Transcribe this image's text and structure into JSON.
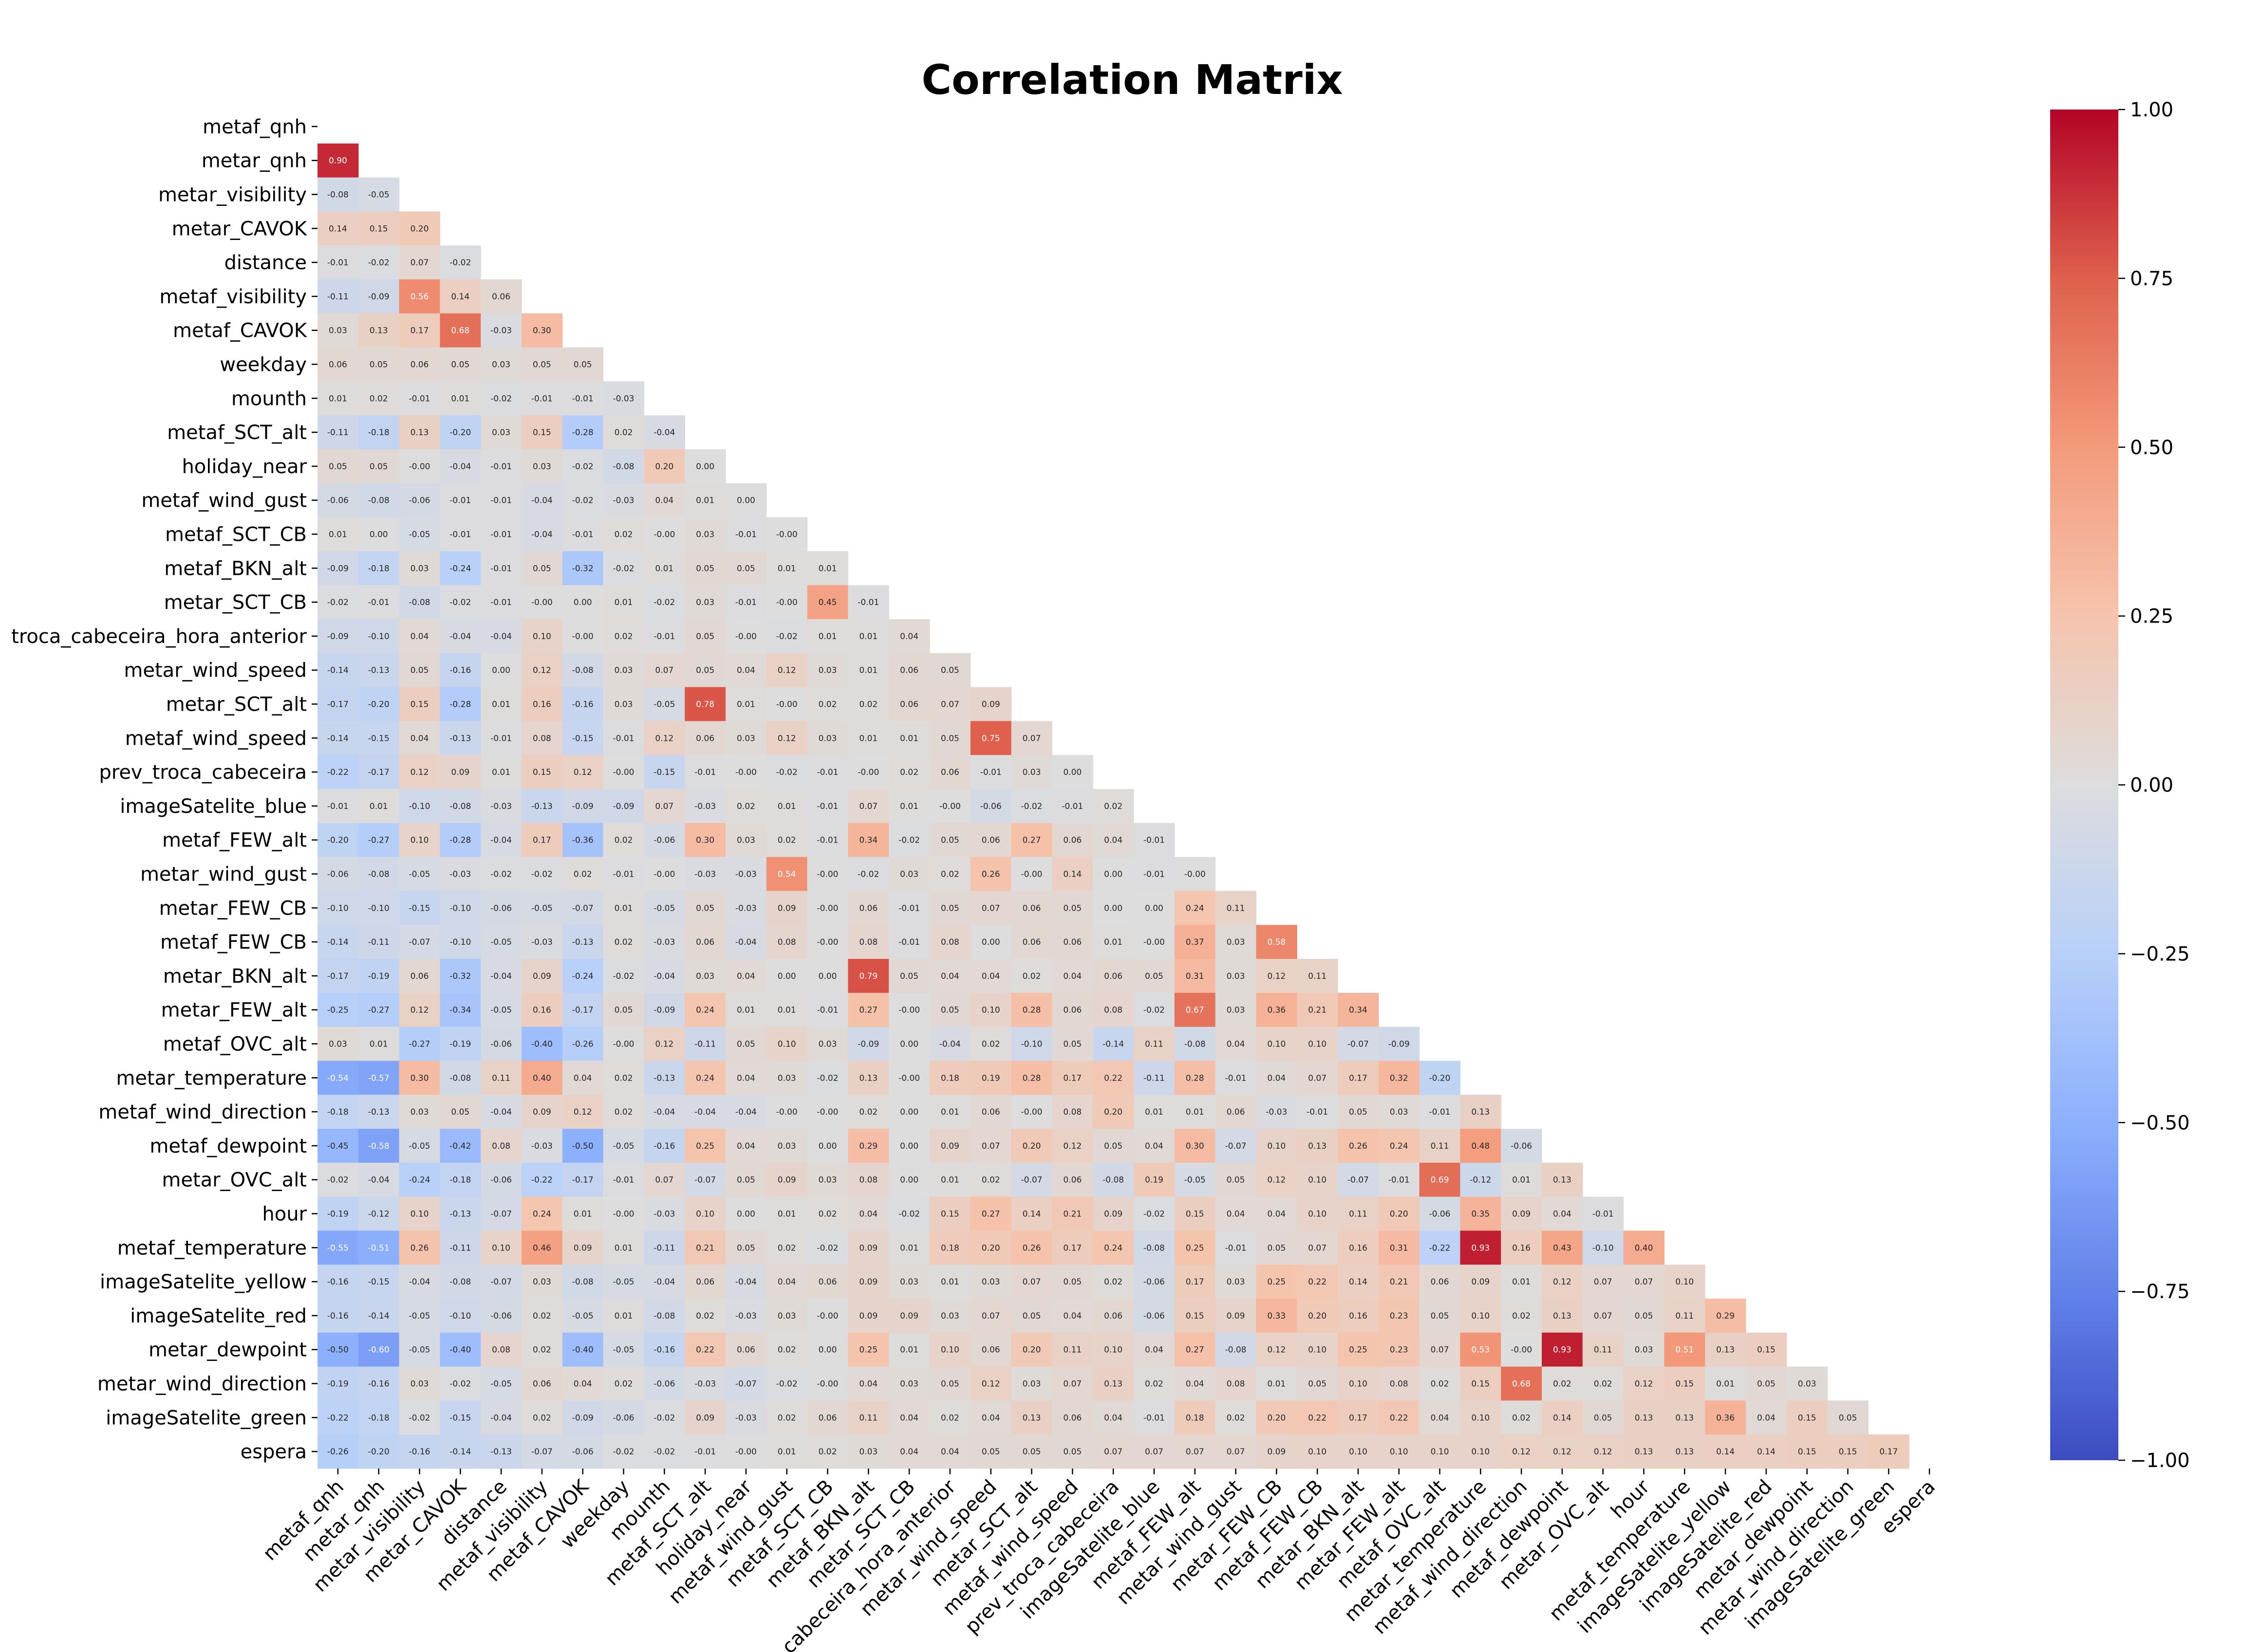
{
  "chart_data": {
    "type": "heatmap",
    "title": "Correlation Matrix",
    "mask": "upper-triangle-including-diagonal",
    "colormap": "coolwarm",
    "vmin": -1.0,
    "vmax": 1.0,
    "colorbar_ticks": [
      1.0,
      0.75,
      0.5,
      0.25,
      0.0,
      -0.25,
      -0.5,
      -0.75,
      -1.0
    ],
    "colorbar_tick_labels": [
      "1.00",
      "0.75",
      "0.50",
      "0.25",
      "0.00",
      "−0.25",
      "−0.50",
      "−0.75",
      "−1.00"
    ],
    "labels": [
      "metaf_qnh",
      "metar_qnh",
      "metar_visibility",
      "metar_CAVOK",
      "distance",
      "metaf_visibility",
      "metaf_CAVOK",
      "weekday",
      "mounth",
      "metaf_SCT_alt",
      "holiday_near",
      "metaf_wind_gust",
      "metaf_SCT_CB",
      "metaf_BKN_alt",
      "metar_SCT_CB",
      "troca_cabeceira_hora_anterior",
      "metar_wind_speed",
      "metar_SCT_alt",
      "metaf_wind_speed",
      "prev_troca_cabeceira",
      "imageSatelite_blue",
      "metaf_FEW_alt",
      "metar_wind_gust",
      "metar_FEW_CB",
      "metaf_FEW_CB",
      "metar_BKN_alt",
      "metar_FEW_alt",
      "metaf_OVC_alt",
      "metar_temperature",
      "metaf_wind_direction",
      "metaf_dewpoint",
      "metar_OVC_alt",
      "hour",
      "metaf_temperature",
      "imageSatelite_yellow",
      "imageSatelite_red",
      "metar_dewpoint",
      "metar_wind_direction",
      "imageSatelite_green",
      "espera"
    ],
    "row_tick_labels": [
      "metaf_qnh",
      "metar_qnh",
      "metar_visibility",
      "metar_CAVOK",
      "distance",
      "metaf_visibility",
      "metaf_CAVOK",
      "weekday",
      "mounth",
      "metaf_SCT_alt",
      "holiday_near",
      "metaf_wind_gust",
      "metaf_SCT_CB",
      "metaf_BKN_alt",
      "metar_SCT_CB",
      "troca_cabeceira_hora_anterior",
      "metar_wind_speed",
      "metar_SCT_alt",
      "metaf_wind_speed",
      "prev_troca_cabeceira",
      "imageSatelite_blue",
      "metaf_FEW_alt",
      "metar_wind_gust",
      "metar_FEW_CB",
      "metaf_FEW_CB",
      "metar_BKN_alt",
      "metar_FEW_alt",
      "metaf_OVC_alt",
      "metar_temperature",
      "metaf_wind_direction",
      "metaf_dewpoint",
      "metar_OVC_alt",
      "hour",
      "metaf_temperature",
      "imageSatelite_yellow",
      "imageSatelite_red",
      "metar_dewpoint",
      "metar_wind_direction",
      "imageSatelite_green",
      "espera"
    ],
    "col_tick_labels": [
      "metaf_qnh",
      "metar_qnh",
      "metar_visibility",
      "metar_CAVOK",
      "distance",
      "metaf_visibility",
      "metaf_CAVOK",
      "weekday",
      "mounth",
      "metaf_SCT_alt",
      "holiday_near",
      "metaf_wind_gust",
      "metaf_SCT_CB",
      "metaf_BKN_alt",
      "metar_SCT_CB",
      "troca_cabeceira_hora_anterior",
      "metar_wind_speed",
      "metar_SCT_alt",
      "metaf_wind_speed",
      "prev_troca_cabeceira",
      "imageSatelite_blue",
      "metaf_FEW_alt",
      "metar_wind_gust",
      "metar_FEW_CB",
      "metaf_FEW_CB",
      "metar_BKN_alt",
      "metar_FEW_alt",
      "metaf_OVC_alt",
      "metar_temperature",
      "metaf_wind_direction",
      "metaf_dewpoint",
      "metar_OVC_alt",
      "hour",
      "metaf_temperature",
      "imageSatelite_yellow",
      "imageSatelite_red",
      "metar_dewpoint",
      "metar_wind_direction",
      "imageSatelite_green",
      "espera"
    ],
    "values": [
      [],
      [
        0.9
      ],
      [
        -0.08,
        -0.05
      ],
      [
        0.14,
        0.15,
        0.2
      ],
      [
        -0.01,
        -0.02,
        0.07,
        -0.02
      ],
      [
        -0.11,
        -0.09,
        0.56,
        0.14,
        0.06
      ],
      [
        0.03,
        0.13,
        0.17,
        0.68,
        -0.03,
        0.3
      ],
      [
        0.06,
        0.05,
        0.06,
        0.05,
        0.03,
        0.05,
        0.05
      ],
      [
        0.01,
        0.02,
        -0.01,
        0.01,
        -0.02,
        -0.01,
        -0.01,
        -0.03
      ],
      [
        -0.11,
        -0.18,
        0.13,
        -0.2,
        0.03,
        0.15,
        -0.28,
        0.02,
        -0.04
      ],
      [
        0.05,
        0.05,
        -0.0,
        -0.04,
        -0.01,
        0.03,
        -0.02,
        -0.08,
        0.2,
        0.0
      ],
      [
        -0.06,
        -0.08,
        -0.06,
        -0.01,
        -0.01,
        -0.04,
        -0.02,
        -0.03,
        0.04,
        0.01,
        0.0
      ],
      [
        0.01,
        0.0,
        -0.05,
        -0.01,
        -0.01,
        -0.04,
        -0.01,
        0.02,
        -0.0,
        0.03,
        -0.01,
        -0.0
      ],
      [
        -0.09,
        -0.18,
        0.03,
        -0.24,
        -0.01,
        0.05,
        -0.32,
        -0.02,
        0.01,
        0.05,
        0.05,
        0.01,
        0.01
      ],
      [
        -0.02,
        -0.01,
        -0.08,
        -0.02,
        -0.01,
        -0.0,
        0.0,
        0.01,
        -0.02,
        0.03,
        -0.01,
        -0.0,
        0.45,
        -0.01
      ],
      [
        -0.09,
        -0.1,
        0.04,
        -0.04,
        -0.04,
        0.1,
        -0.0,
        0.02,
        -0.01,
        0.05,
        -0.0,
        -0.02,
        0.01,
        0.01,
        0.04
      ],
      [
        -0.14,
        -0.13,
        0.05,
        -0.16,
        0.0,
        0.12,
        -0.08,
        0.03,
        0.07,
        0.05,
        0.04,
        0.12,
        0.03,
        0.01,
        0.06,
        0.05
      ],
      [
        -0.17,
        -0.2,
        0.15,
        -0.28,
        0.01,
        0.16,
        -0.16,
        0.03,
        -0.05,
        0.78,
        0.01,
        -0.0,
        0.02,
        0.02,
        0.06,
        0.07,
        0.09
      ],
      [
        -0.14,
        -0.15,
        0.04,
        -0.13,
        -0.01,
        0.08,
        -0.15,
        -0.01,
        0.12,
        0.06,
        0.03,
        0.12,
        0.03,
        0.01,
        0.01,
        0.05,
        0.75,
        0.07
      ],
      [
        -0.22,
        -0.17,
        0.12,
        0.09,
        0.01,
        0.15,
        0.12,
        -0.0,
        -0.15,
        -0.01,
        -0.0,
        -0.02,
        -0.01,
        -0.0,
        0.02,
        0.06,
        -0.01,
        0.03,
        0.0
      ],
      [
        -0.01,
        0.01,
        -0.1,
        -0.08,
        -0.03,
        -0.13,
        -0.09,
        -0.09,
        0.07,
        -0.03,
        0.02,
        0.01,
        -0.01,
        0.07,
        0.01,
        -0.0,
        -0.06,
        -0.02,
        -0.01,
        0.02
      ],
      [
        -0.2,
        -0.27,
        0.1,
        -0.28,
        -0.04,
        0.17,
        -0.36,
        0.02,
        -0.06,
        0.3,
        0.03,
        0.02,
        -0.01,
        0.34,
        -0.02,
        0.05,
        0.06,
        0.27,
        0.06,
        0.04,
        -0.01
      ],
      [
        -0.06,
        -0.08,
        -0.05,
        -0.03,
        -0.02,
        -0.02,
        0.02,
        -0.01,
        -0.0,
        -0.03,
        -0.03,
        0.54,
        -0.0,
        -0.02,
        0.03,
        0.02,
        0.26,
        -0.0,
        0.14,
        0.0,
        -0.01,
        -0.0
      ],
      [
        -0.1,
        -0.1,
        -0.15,
        -0.1,
        -0.06,
        -0.05,
        -0.07,
        0.01,
        -0.05,
        0.05,
        -0.03,
        0.09,
        -0.0,
        0.06,
        -0.01,
        0.05,
        0.07,
        0.06,
        0.05,
        0.0,
        0.0,
        0.24,
        0.11
      ],
      [
        -0.14,
        -0.11,
        -0.07,
        -0.1,
        -0.05,
        -0.03,
        -0.13,
        0.02,
        -0.03,
        0.06,
        -0.04,
        0.08,
        -0.0,
        0.08,
        -0.01,
        0.08,
        0.0,
        0.06,
        0.06,
        0.01,
        -0.0,
        0.37,
        0.03,
        0.58
      ],
      [
        -0.17,
        -0.19,
        0.06,
        -0.32,
        -0.04,
        0.09,
        -0.24,
        -0.02,
        -0.04,
        0.03,
        0.04,
        0.0,
        0.0,
        0.79,
        0.05,
        0.04,
        0.04,
        0.02,
        0.04,
        0.06,
        0.05,
        0.31,
        0.03,
        0.12,
        0.11
      ],
      [
        -0.25,
        -0.27,
        0.12,
        -0.34,
        -0.05,
        0.16,
        -0.17,
        0.05,
        -0.09,
        0.24,
        0.01,
        0.01,
        -0.01,
        0.27,
        -0.0,
        0.05,
        0.1,
        0.28,
        0.06,
        0.08,
        -0.02,
        0.67,
        0.03,
        0.36,
        0.21,
        0.34
      ],
      [
        0.03,
        0.01,
        -0.27,
        -0.19,
        -0.06,
        -0.4,
        -0.26,
        -0.0,
        0.12,
        -0.11,
        0.05,
        0.1,
        0.03,
        -0.09,
        0.0,
        -0.04,
        0.02,
        -0.1,
        0.05,
        -0.14,
        0.11,
        -0.08,
        0.04,
        0.1,
        0.1,
        -0.07,
        -0.09
      ],
      [
        -0.54,
        -0.57,
        0.3,
        -0.08,
        0.11,
        0.4,
        0.04,
        0.02,
        -0.13,
        0.24,
        0.04,
        0.03,
        -0.02,
        0.13,
        -0.0,
        0.18,
        0.19,
        0.28,
        0.17,
        0.22,
        -0.11,
        0.28,
        -0.01,
        0.04,
        0.07,
        0.17,
        0.32,
        -0.2
      ],
      [
        -0.18,
        -0.13,
        0.03,
        0.05,
        -0.04,
        0.09,
        0.12,
        0.02,
        -0.04,
        -0.04,
        -0.04,
        -0.0,
        -0.0,
        0.02,
        0.0,
        0.01,
        0.06,
        -0.0,
        0.08,
        0.2,
        0.01,
        0.01,
        0.06,
        -0.03,
        -0.01,
        0.05,
        0.03,
        -0.01,
        0.13
      ],
      [
        -0.45,
        -0.58,
        -0.05,
        -0.42,
        0.08,
        -0.03,
        -0.5,
        -0.05,
        -0.16,
        0.25,
        0.04,
        0.03,
        0.0,
        0.29,
        0.0,
        0.09,
        0.07,
        0.2,
        0.12,
        0.05,
        0.04,
        0.3,
        -0.07,
        0.1,
        0.13,
        0.26,
        0.24,
        0.11,
        0.48,
        -0.06
      ],
      [
        -0.02,
        -0.04,
        -0.24,
        -0.18,
        -0.06,
        -0.22,
        -0.17,
        -0.01,
        0.07,
        -0.07,
        0.05,
        0.09,
        0.03,
        0.08,
        0.0,
        0.01,
        0.02,
        -0.07,
        0.06,
        -0.08,
        0.19,
        -0.05,
        0.05,
        0.12,
        0.1,
        -0.07,
        -0.01,
        0.69,
        -0.12,
        0.01,
        0.13
      ],
      [
        -0.19,
        -0.12,
        0.1,
        -0.13,
        -0.07,
        0.24,
        0.01,
        -0.0,
        -0.03,
        0.1,
        0.0,
        0.01,
        0.02,
        0.04,
        -0.02,
        0.15,
        0.27,
        0.14,
        0.21,
        0.09,
        -0.02,
        0.15,
        0.04,
        0.04,
        0.1,
        0.11,
        0.2,
        -0.06,
        0.35,
        0.09,
        0.04,
        -0.01
      ],
      [
        -0.55,
        -0.51,
        0.26,
        -0.11,
        0.1,
        0.46,
        0.09,
        0.01,
        -0.11,
        0.21,
        0.05,
        0.02,
        -0.02,
        0.09,
        0.01,
        0.18,
        0.2,
        0.26,
        0.17,
        0.24,
        -0.08,
        0.25,
        -0.01,
        0.05,
        0.07,
        0.16,
        0.31,
        -0.22,
        0.93,
        0.16,
        0.43,
        -0.1,
        0.4
      ],
      [
        -0.16,
        -0.15,
        -0.04,
        -0.08,
        -0.07,
        0.03,
        -0.08,
        -0.05,
        -0.04,
        0.06,
        -0.04,
        0.04,
        0.06,
        0.09,
        0.03,
        0.01,
        0.03,
        0.07,
        0.05,
        0.02,
        -0.06,
        0.17,
        0.03,
        0.25,
        0.22,
        0.14,
        0.21,
        0.06,
        0.09,
        0.01,
        0.12,
        0.07,
        0.07,
        0.1
      ],
      [
        -0.16,
        -0.14,
        -0.05,
        -0.1,
        -0.06,
        0.02,
        -0.05,
        0.01,
        -0.08,
        0.02,
        -0.03,
        0.03,
        -0.0,
        0.09,
        0.09,
        0.03,
        0.07,
        0.05,
        0.04,
        0.06,
        -0.06,
        0.15,
        0.09,
        0.33,
        0.2,
        0.16,
        0.23,
        0.05,
        0.1,
        0.02,
        0.13,
        0.07,
        0.05,
        0.11,
        0.29
      ],
      [
        -0.5,
        -0.6,
        -0.05,
        -0.4,
        0.08,
        0.02,
        -0.4,
        -0.05,
        -0.16,
        0.22,
        0.06,
        0.02,
        0.0,
        0.25,
        0.01,
        0.1,
        0.06,
        0.2,
        0.11,
        0.1,
        0.04,
        0.27,
        -0.08,
        0.12,
        0.1,
        0.25,
        0.23,
        0.07,
        0.53,
        -0.0,
        0.93,
        0.11,
        0.03,
        0.51,
        0.13,
        0.15
      ],
      [
        -0.19,
        -0.16,
        0.03,
        -0.02,
        -0.05,
        0.06,
        0.04,
        0.02,
        -0.06,
        -0.03,
        -0.07,
        -0.02,
        -0.0,
        0.04,
        0.03,
        0.05,
        0.12,
        0.03,
        0.07,
        0.13,
        0.02,
        0.04,
        0.08,
        0.01,
        0.05,
        0.1,
        0.08,
        0.02,
        0.15,
        0.68,
        0.02,
        0.02,
        0.12,
        0.15,
        0.01,
        0.05,
        0.03
      ],
      [
        -0.22,
        -0.18,
        -0.02,
        -0.15,
        -0.04,
        0.02,
        -0.09,
        -0.06,
        -0.02,
        0.09,
        -0.03,
        0.02,
        0.06,
        0.11,
        0.04,
        0.02,
        0.04,
        0.13,
        0.06,
        0.04,
        -0.01,
        0.18,
        0.02,
        0.2,
        0.22,
        0.17,
        0.22,
        0.04,
        0.1,
        0.02,
        0.14,
        0.05,
        0.13,
        0.13,
        0.36,
        0.04,
        0.15,
        0.05
      ],
      [
        -0.26,
        -0.2,
        -0.16,
        -0.14,
        -0.13,
        -0.07,
        -0.06,
        -0.02,
        -0.02,
        -0.01,
        -0.0,
        0.01,
        0.02,
        0.03,
        0.04,
        0.04,
        0.05,
        0.05,
        0.05,
        0.07,
        0.07,
        0.07,
        0.07,
        0.09,
        0.1,
        0.1,
        0.1,
        0.1,
        0.1,
        0.12,
        0.12,
        0.12,
        0.13,
        0.13,
        0.14,
        0.14,
        0.15,
        0.15,
        0.17
      ]
    ]
  }
}
